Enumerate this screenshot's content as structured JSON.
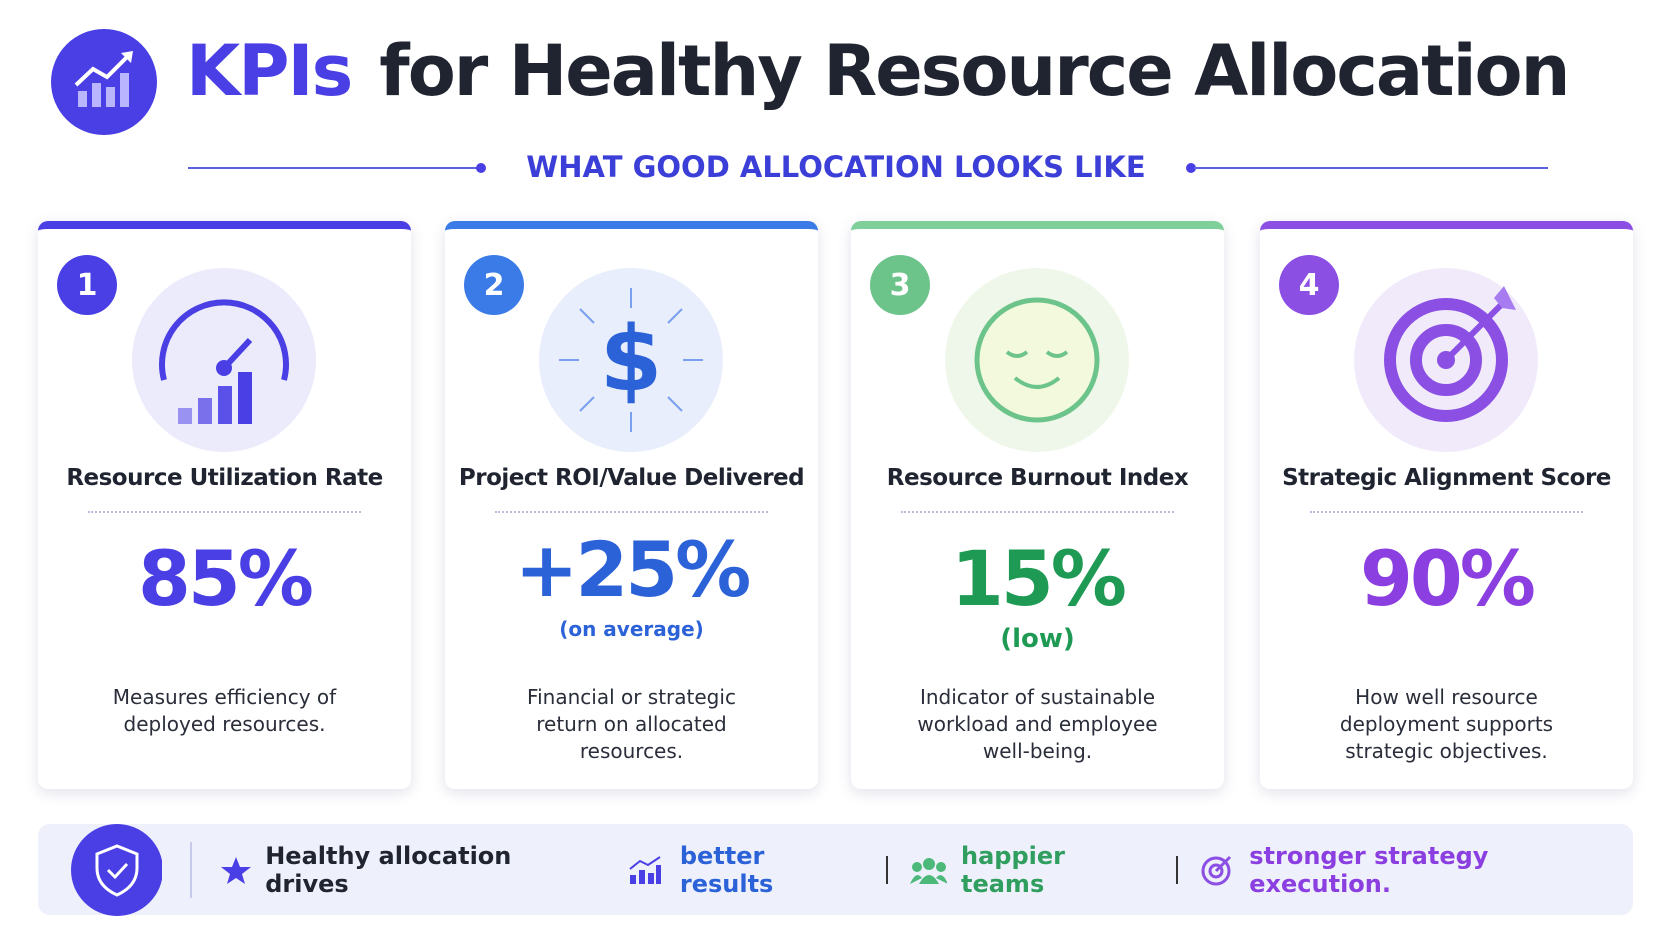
{
  "header": {
    "title_highlight": "KPIs",
    "title": "for Healthy Resource Allocation",
    "subtitle": "WHAT GOOD ALLOCATION LOOKS LIKE"
  },
  "cards": [
    {
      "number": "1",
      "title": "Resource Utilization Rate",
      "value": "85%",
      "description": "Measures efficiency of deployed resources."
    },
    {
      "number": "2",
      "title": "Project ROI/Value Delivered",
      "value": "+25%",
      "note": "(on average)",
      "description": "Financial or strategic return on allocated resources."
    },
    {
      "number": "3",
      "title": "Resource Burnout Index",
      "value": "15%",
      "note": "(low)",
      "description": "Indicator of sustainable workload and employee well-being."
    },
    {
      "number": "4",
      "title": "Strategic Alignment Score",
      "value": "90%",
      "description": "How well resource deployment supports strategic objectives."
    }
  ],
  "footer": {
    "lead": "Healthy allocation drives",
    "items": [
      "better results",
      "happier teams",
      "stronger strategy execution."
    ]
  }
}
